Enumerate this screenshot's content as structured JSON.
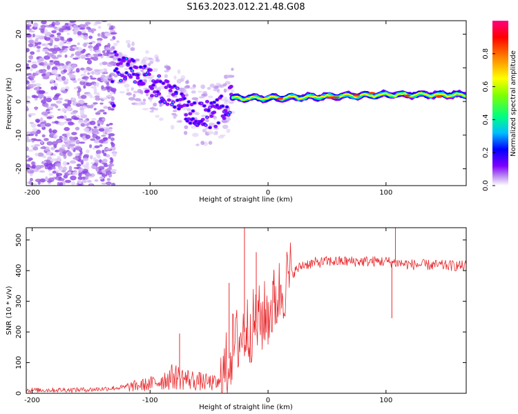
{
  "title": "S163.2023.012.21.48.G08",
  "chart_data": [
    {
      "type": "heatmap",
      "name": "spectrogram",
      "xlabel": "Height of straight line (km)",
      "ylabel": "Frequency (Hz)",
      "xlim": [
        -205,
        168
      ],
      "ylim": [
        -25,
        24
      ],
      "xticks": [
        -200,
        -100,
        0,
        100
      ],
      "yticks": [
        -20,
        -10,
        0,
        10,
        20
      ],
      "colorbar": {
        "label": "Normalized spectral amplitude",
        "range": [
          0,
          1
        ],
        "ticks": [
          0.0,
          0.2,
          0.4,
          0.6,
          0.8
        ],
        "colors": [
          "#ffffff",
          "#c39bf0",
          "#7f00ff",
          "#0000ff",
          "#00bfff",
          "#00ff80",
          "#80ff00",
          "#ffff00",
          "#ff8000",
          "#ff0000",
          "#ff0080"
        ]
      },
      "ridge": {
        "description_points": [
          {
            "x": -130,
            "y": 11
          },
          {
            "x": -100,
            "y": 6
          },
          {
            "x": -80,
            "y": 1
          },
          {
            "x": -60,
            "y": -4
          },
          {
            "x": -45,
            "y": -4
          },
          {
            "x": -30,
            "y": 1
          },
          {
            "x": 0,
            "y": 1
          },
          {
            "x": 50,
            "y": 1.5
          },
          {
            "x": 100,
            "y": 2
          },
          {
            "x": 168,
            "y": 2
          }
        ]
      }
    },
    {
      "type": "line",
      "name": "snr",
      "xlabel": "Height of straight line (km)",
      "ylabel": "SNR (10 * v/v)",
      "xlim": [
        -205,
        168
      ],
      "ylim": [
        0,
        540
      ],
      "xticks": [
        -200,
        -100,
        0,
        100
      ],
      "yticks": [
        0,
        100,
        200,
        300,
        400,
        500
      ],
      "color": "#e8282c",
      "envelope": [
        {
          "x": -205,
          "y": 10
        },
        {
          "x": -150,
          "y": 12
        },
        {
          "x": -120,
          "y": 20
        },
        {
          "x": -100,
          "y": 30
        },
        {
          "x": -80,
          "y": 55
        },
        {
          "x": -60,
          "y": 40
        },
        {
          "x": -40,
          "y": 30
        },
        {
          "x": -30,
          "y": 150
        },
        {
          "x": -20,
          "y": 200
        },
        {
          "x": -10,
          "y": 230
        },
        {
          "x": 0,
          "y": 260
        },
        {
          "x": 10,
          "y": 330
        },
        {
          "x": 20,
          "y": 390
        },
        {
          "x": 30,
          "y": 420
        },
        {
          "x": 50,
          "y": 430
        },
        {
          "x": 80,
          "y": 430
        },
        {
          "x": 100,
          "y": 430
        },
        {
          "x": 120,
          "y": 420
        },
        {
          "x": 168,
          "y": 415
        }
      ],
      "spikes": [
        {
          "x": -75,
          "y": 195
        },
        {
          "x": -33,
          "y": 360
        },
        {
          "x": -20,
          "y": 540
        },
        {
          "x": -10,
          "y": 460
        },
        {
          "x": 5,
          "y": 400
        },
        {
          "x": 108,
          "y": 540
        },
        {
          "x": 105,
          "y": 245
        }
      ]
    }
  ]
}
